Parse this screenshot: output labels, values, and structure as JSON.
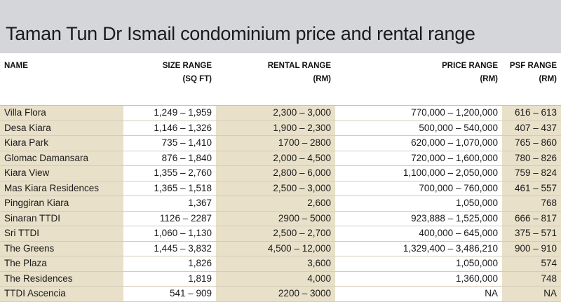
{
  "title": "Taman Tun Dr Ismail condominium price and rental range",
  "columns": [
    {
      "label": "NAME",
      "unit": ""
    },
    {
      "label": "SIZE RANGE",
      "unit": "(SQ FT)"
    },
    {
      "label": "RENTAL RANGE",
      "unit": "(RM)"
    },
    {
      "label": "PRICE RANGE",
      "unit": "(RM)"
    },
    {
      "label": "PSF RANGE",
      "unit": "(RM)"
    }
  ],
  "rows": [
    {
      "name": "Villa Flora",
      "size": "1,249 – 1,959",
      "rental": "2,300 – 3,000",
      "price": "770,000 – 1,200,000",
      "psf": "616 – 613"
    },
    {
      "name": "Desa Kiara",
      "size": "1,146 – 1,326",
      "rental": "1,900 – 2,300",
      "price": "500,000 – 540,000",
      "psf": "407 – 437"
    },
    {
      "name": "Kiara Park",
      "size": "735 – 1,410",
      "rental": "1700 – 2800",
      "price": "620,000 – 1,070,000",
      "psf": "765 – 860"
    },
    {
      "name": "Glomac Damansara",
      "size": "876 – 1,840",
      "rental": "2,000 – 4,500",
      "price": "720,000 – 1,600,000",
      "psf": "780 – 826"
    },
    {
      "name": "Kiara View",
      "size": "1,355 – 2,760",
      "rental": "2,800 – 6,000",
      "price": "1,100,000 – 2,050,000",
      "psf": "759 – 824"
    },
    {
      "name": "Mas Kiara Residences",
      "size": "1,365 – 1,518",
      "rental": "2,500 – 3,000",
      "price": "700,000 – 760,000",
      "psf": "461 – 557"
    },
    {
      "name": "Pinggiran Kiara",
      "size": "1,367",
      "rental": "2,600",
      "price": "1,050,000",
      "psf": "768"
    },
    {
      "name": "Sinaran TTDI",
      "size": "1126 – 2287",
      "rental": "2900 – 5000",
      "price": "923,888 – 1,525,000",
      "psf": "666 – 817"
    },
    {
      "name": "Sri TTDI",
      "size": "1,060 – 1,130",
      "rental": "2,500 – 2,700",
      "price": "400,000 – 645,000",
      "psf": "375 – 571"
    },
    {
      "name": "The Greens",
      "size": "1,445 – 3,832",
      "rental": "4,500 – 12,000",
      "price": "1,329,400 – 3,486,210",
      "psf": "900 – 910"
    },
    {
      "name": "The Plaza",
      "size": "1,826",
      "rental": "3,600",
      "price": "1,050,000",
      "psf": "574"
    },
    {
      "name": "The Residences",
      "size": "1,819",
      "rental": "4,000",
      "price": "1,360,000",
      "psf": "748"
    },
    {
      "name": "TTDI Ascencia",
      "size": "541 – 909",
      "rental": "2200 – 3000",
      "price": "NA",
      "psf": "NA"
    }
  ]
}
